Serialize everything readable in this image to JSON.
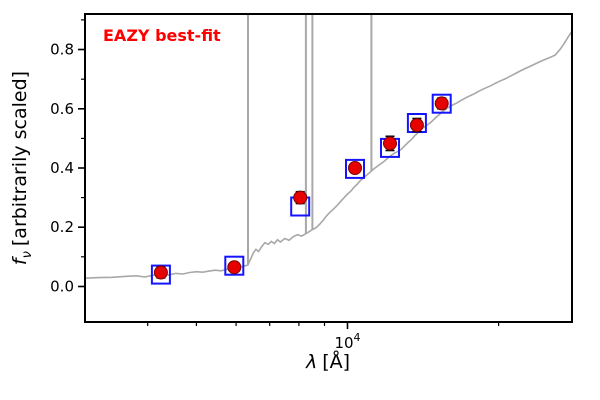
{
  "chart_data": {
    "type": "line",
    "annotation": "EAZY best-fit",
    "xlabel": {
      "symbol": "λ",
      "unit": "[Å]"
    },
    "ylabel": {
      "symbol": "f",
      "subscript": "ν",
      "rest": "[arbitrarily scaled]"
    },
    "xscale": "log",
    "yscale": "linear",
    "xlim": [
      3000,
      28000
    ],
    "ylim": [
      -0.12,
      0.92
    ],
    "grid": false,
    "legend": "none",
    "x_major_ticks": [
      {
        "value": 10000,
        "base": "10",
        "exp": "4"
      }
    ],
    "x_minor_ticks": [
      4000,
      5000,
      6000,
      7000,
      8000,
      9000,
      20000
    ],
    "y_major_ticks": [
      0.0,
      0.2,
      0.4,
      0.6,
      0.8
    ],
    "y_minor_ticks": [
      0.1,
      0.3,
      0.5,
      0.7,
      0.9
    ],
    "colors": {
      "spectrum": "#a8a8a8",
      "observed": "#e60000",
      "observed_edge": "#7a0000",
      "model_square": "#1414ff",
      "errorbar": "#000000",
      "annotation": "#ff0000",
      "frame": "#000000"
    },
    "series": [
      {
        "name": "EAZY best-fit template spectrum",
        "type": "line",
        "points": [
          [
            3000,
            0.028
          ],
          [
            3200,
            0.03
          ],
          [
            3400,
            0.031
          ],
          [
            3600,
            0.034
          ],
          [
            3800,
            0.036
          ],
          [
            3950,
            0.032
          ],
          [
            4100,
            0.038
          ],
          [
            4250,
            0.042
          ],
          [
            4400,
            0.039
          ],
          [
            4550,
            0.044
          ],
          [
            4700,
            0.042
          ],
          [
            4850,
            0.047
          ],
          [
            5000,
            0.05
          ],
          [
            5150,
            0.048
          ],
          [
            5300,
            0.052
          ],
          [
            5450,
            0.055
          ],
          [
            5600,
            0.053
          ],
          [
            5750,
            0.058
          ],
          [
            5900,
            0.062
          ],
          [
            6050,
            0.064
          ],
          [
            6200,
            0.068
          ],
          [
            6330,
            0.072
          ],
          [
            6420,
            0.095
          ],
          [
            6500,
            0.115
          ],
          [
            6570,
            0.125
          ],
          [
            6650,
            0.118
          ],
          [
            6750,
            0.135
          ],
          [
            6850,
            0.148
          ],
          [
            6950,
            0.142
          ],
          [
            7050,
            0.152
          ],
          [
            7150,
            0.145
          ],
          [
            7250,
            0.158
          ],
          [
            7350,
            0.15
          ],
          [
            7500,
            0.162
          ],
          [
            7650,
            0.156
          ],
          [
            7800,
            0.168
          ],
          [
            7950,
            0.175
          ],
          [
            8100,
            0.17
          ],
          [
            8260,
            0.178
          ],
          [
            8400,
            0.186
          ],
          [
            8510,
            0.192
          ],
          [
            8650,
            0.198
          ],
          [
            8800,
            0.21
          ],
          [
            8950,
            0.224
          ],
          [
            9100,
            0.24
          ],
          [
            9250,
            0.252
          ],
          [
            9400,
            0.263
          ],
          [
            9550,
            0.275
          ],
          [
            9700,
            0.288
          ],
          [
            9850,
            0.3
          ],
          [
            10000,
            0.312
          ],
          [
            10150,
            0.322
          ],
          [
            10300,
            0.335
          ],
          [
            10450,
            0.345
          ],
          [
            10600,
            0.357
          ],
          [
            10750,
            0.366
          ],
          [
            10900,
            0.375
          ],
          [
            11050,
            0.383
          ],
          [
            11160,
            0.39
          ],
          [
            11300,
            0.398
          ],
          [
            11450,
            0.405
          ],
          [
            11600,
            0.412
          ],
          [
            11800,
            0.421
          ],
          [
            12000,
            0.432
          ],
          [
            12200,
            0.442
          ],
          [
            12400,
            0.45
          ],
          [
            12600,
            0.456
          ],
          [
            12800,
            0.463
          ],
          [
            13000,
            0.475
          ],
          [
            13200,
            0.486
          ],
          [
            13400,
            0.496
          ],
          [
            13600,
            0.508
          ],
          [
            13800,
            0.518
          ],
          [
            14000,
            0.53
          ],
          [
            14200,
            0.538
          ],
          [
            14400,
            0.545
          ],
          [
            14600,
            0.552
          ],
          [
            14800,
            0.561
          ],
          [
            15000,
            0.571
          ],
          [
            15250,
            0.581
          ],
          [
            15500,
            0.592
          ],
          [
            15750,
            0.601
          ],
          [
            16000,
            0.608
          ],
          [
            16250,
            0.614
          ],
          [
            16500,
            0.619
          ],
          [
            16750,
            0.626
          ],
          [
            17000,
            0.632
          ],
          [
            17300,
            0.639
          ],
          [
            17600,
            0.645
          ],
          [
            17900,
            0.651
          ],
          [
            18200,
            0.658
          ],
          [
            18500,
            0.664
          ],
          [
            18900,
            0.671
          ],
          [
            19300,
            0.678
          ],
          [
            19700,
            0.686
          ],
          [
            20100,
            0.693
          ],
          [
            20600,
            0.701
          ],
          [
            21100,
            0.71
          ],
          [
            21600,
            0.719
          ],
          [
            22100,
            0.728
          ],
          [
            22600,
            0.736
          ],
          [
            23100,
            0.743
          ],
          [
            23600,
            0.751
          ],
          [
            24100,
            0.758
          ],
          [
            24700,
            0.766
          ],
          [
            25300,
            0.773
          ],
          [
            25900,
            0.781
          ],
          [
            26500,
            0.8
          ],
          [
            27000,
            0.82
          ],
          [
            27500,
            0.842
          ],
          [
            28000,
            0.862
          ]
        ]
      },
      {
        "name": "model photometry (template squares)",
        "type": "scatter-square",
        "x": [
          4250,
          5950,
          8050,
          10350,
          12150,
          13750,
          15400
        ],
        "y": [
          0.04,
          0.07,
          0.27,
          0.397,
          0.468,
          0.552,
          0.617
        ]
      },
      {
        "name": "observed photometry",
        "type": "scatter-circle",
        "x": [
          4250,
          5950,
          8050,
          10350,
          12150,
          13750,
          15400
        ],
        "y": [
          0.047,
          0.065,
          0.3,
          0.4,
          0.483,
          0.545,
          0.618
        ],
        "yerr": [
          0.018,
          0.013,
          0.02,
          0.015,
          0.024,
          0.022,
          0.018
        ]
      }
    ],
    "emission_lines": [
      {
        "lambda": 6337,
        "base": 0.072
      },
      {
        "lambda": 8263,
        "base": 0.178
      },
      {
        "lambda": 8512,
        "base": 0.192
      },
      {
        "lambda": 11157,
        "base": 0.39
      }
    ]
  }
}
